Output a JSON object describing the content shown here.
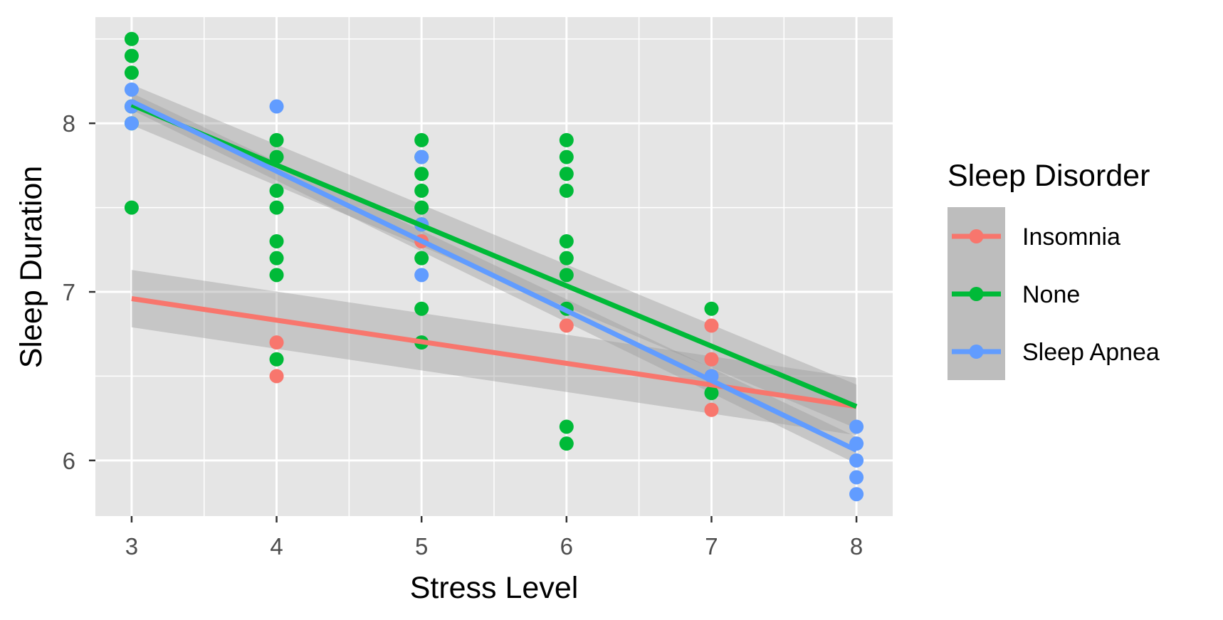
{
  "chart_data": {
    "type": "scatter",
    "xlabel": "Stress Level",
    "ylabel": "Sleep Duration",
    "x_ticks": [
      "3",
      "4",
      "5",
      "6",
      "7",
      "8"
    ],
    "y_ticks": [
      "6",
      "7",
      "8"
    ],
    "xlim": [
      2.75,
      8.25
    ],
    "ylim": [
      5.67,
      8.63
    ],
    "grid": true,
    "legend": {
      "title": "Sleep Disorder",
      "placement": "right",
      "entries": [
        "Insomnia",
        "None",
        "Sleep Apnea"
      ]
    },
    "series": [
      {
        "name": "Insomnia",
        "color": "#F8766D",
        "points": [
          [
            4,
            6.7
          ],
          [
            4,
            6.5
          ],
          [
            5,
            7.3
          ],
          [
            6,
            6.8
          ],
          [
            7,
            6.8
          ],
          [
            7,
            6.6
          ],
          [
            7,
            6.5
          ],
          [
            7,
            6.3
          ]
        ],
        "fit": {
          "x": [
            3,
            8
          ],
          "y": [
            6.96,
            6.32
          ]
        },
        "band": {
          "x": [
            3,
            8
          ],
          "upper": [
            7.13,
            6.49
          ],
          "lower": [
            6.79,
            6.15
          ]
        }
      },
      {
        "name": "None",
        "color": "#00BA38",
        "points": [
          [
            3,
            8.5
          ],
          [
            3,
            8.4
          ],
          [
            3,
            8.3
          ],
          [
            3,
            8.1
          ],
          [
            3,
            8.0
          ],
          [
            3,
            7.5
          ],
          [
            4,
            7.9
          ],
          [
            4,
            7.8
          ],
          [
            4,
            7.6
          ],
          [
            4,
            7.5
          ],
          [
            4,
            7.3
          ],
          [
            4,
            7.2
          ],
          [
            4,
            7.1
          ],
          [
            4,
            6.6
          ],
          [
            5,
            7.9
          ],
          [
            5,
            7.8
          ],
          [
            5,
            7.7
          ],
          [
            5,
            7.6
          ],
          [
            5,
            7.5
          ],
          [
            5,
            7.4
          ],
          [
            5,
            7.2
          ],
          [
            5,
            6.9
          ],
          [
            5,
            6.7
          ],
          [
            6,
            7.9
          ],
          [
            6,
            7.8
          ],
          [
            6,
            7.7
          ],
          [
            6,
            7.6
          ],
          [
            6,
            7.3
          ],
          [
            6,
            7.2
          ],
          [
            6,
            7.1
          ],
          [
            6,
            6.9
          ],
          [
            6,
            6.2
          ],
          [
            6,
            6.1
          ],
          [
            7,
            6.9
          ],
          [
            7,
            6.4
          ]
        ],
        "fit": {
          "x": [
            3,
            8
          ],
          "y": [
            8.11,
            6.32
          ]
        },
        "band": {
          "x": [
            3,
            8
          ],
          "upper": [
            8.23,
            6.45
          ],
          "lower": [
            7.99,
            6.19
          ]
        }
      },
      {
        "name": "Sleep Apnea",
        "color": "#619CFF",
        "points": [
          [
            3,
            8.2
          ],
          [
            3,
            8.1
          ],
          [
            3,
            8.0
          ],
          [
            4,
            8.1
          ],
          [
            5,
            7.8
          ],
          [
            5,
            7.4
          ],
          [
            5,
            7.1
          ],
          [
            7,
            6.5
          ],
          [
            8,
            6.2
          ],
          [
            8,
            6.1
          ],
          [
            8,
            6.0
          ],
          [
            8,
            5.9
          ],
          [
            8,
            5.8
          ]
        ],
        "fit": {
          "x": [
            3,
            8
          ],
          "y": [
            8.13,
            6.06
          ]
        },
        "band": {
          "x": [
            3,
            8
          ],
          "upper": [
            8.18,
            6.14
          ],
          "lower": [
            8.08,
            5.98
          ]
        }
      }
    ]
  }
}
